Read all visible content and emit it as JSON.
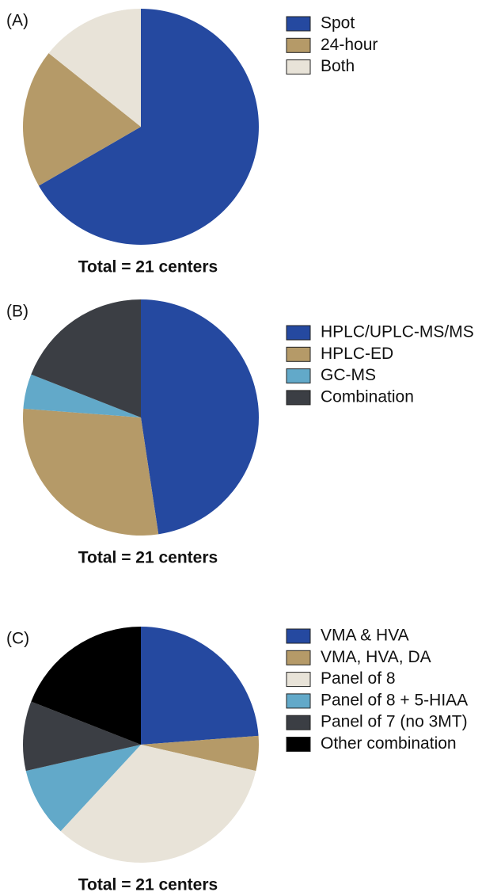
{
  "chart_data": [
    {
      "type": "pie",
      "label": "(A)",
      "caption": "Total = 21 centers",
      "categories": [
        "Spot",
        "24-hour",
        "Both"
      ],
      "values": [
        14,
        4,
        3
      ],
      "colors": [
        "#2549a0",
        "#b59a68",
        "#e8e3d8"
      ]
    },
    {
      "type": "pie",
      "label": "(B)",
      "caption": "Total = 21 centers",
      "categories": [
        "HPLC/UPLC-MS/MS",
        "HPLC-ED",
        "GC-MS",
        "Combination"
      ],
      "values": [
        10,
        6,
        1,
        4
      ],
      "colors": [
        "#2549a0",
        "#b59a68",
        "#62a9c9",
        "#3b3e44"
      ]
    },
    {
      "type": "pie",
      "label": "(C)",
      "caption": "Total = 21 centers",
      "categories": [
        "VMA & HVA",
        "VMA, HVA, DA",
        "Panel of 8",
        "Panel of 8 + 5-HIAA",
        "Panel of 7 (no 3MT)",
        "Other combination"
      ],
      "values": [
        5,
        1,
        7,
        2,
        2,
        4
      ],
      "colors": [
        "#2549a0",
        "#b59a68",
        "#e8e3d8",
        "#62a9c9",
        "#3b3e44",
        "#000000"
      ]
    }
  ]
}
